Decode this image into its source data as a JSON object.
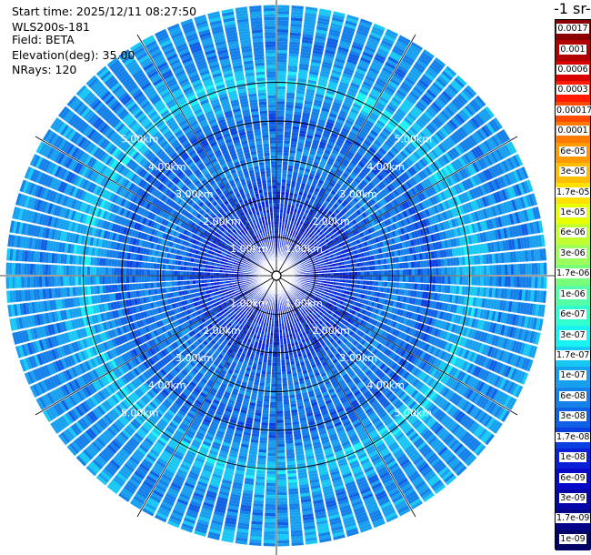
{
  "info": {
    "start_time": "Start time: 2025/12/11 08:27:50",
    "instrument": "WLS200s-181",
    "field": "Field: BETA",
    "elevation": "Elevation(deg): 35.00",
    "nrays": "NRays: 120"
  },
  "colorbar": {
    "title": "-1 sr-",
    "labels": [
      "0.0017",
      "0.001",
      "0.0006",
      "0.0003",
      "0.00017",
      "0.0001",
      "6e-05",
      "3e-05",
      "1.7e-05",
      "1e-05",
      "6e-06",
      "3e-06",
      "1.7e-06",
      "1e-06",
      "6e-07",
      "3e-07",
      "1.7e-07",
      "1e-07",
      "6e-08",
      "3e-08",
      "1.7e-08",
      "1e-08",
      "6e-09",
      "3e-09",
      "1.7e-09",
      "1e-09"
    ],
    "colors": [
      "#8b0000",
      "#b00000",
      "#d80000",
      "#ff1a00",
      "#ff4a00",
      "#ff7a00",
      "#ff9a00",
      "#ffbf00",
      "#ffe000",
      "#e8ff00",
      "#c2ff2e",
      "#9cff5c",
      "#7aff7a",
      "#55ffa8",
      "#30ffd0",
      "#18f2f2",
      "#18c8f4",
      "#18a0f0",
      "#1480ea",
      "#0f60e6",
      "#0a40e0",
      "#0a20d8",
      "#0808c8",
      "#0606a8",
      "#040488",
      "#020266"
    ]
  },
  "chart_data": {
    "type": "heatmap",
    "projection": "polar PPI",
    "field": "BETA",
    "scale": "log",
    "range_rings_km": [
      1,
      2,
      3,
      4,
      5
    ],
    "ring_labels": [
      "1.00km",
      "2.00km",
      "3.00km",
      "4.00km",
      "5.00km"
    ],
    "max_range_km": 7.0,
    "n_rays": 120,
    "elevation_deg": 35.0,
    "radial_profile": [
      {
        "range_km": 0.0,
        "level": "1e-08"
      },
      {
        "range_km": 1.0,
        "level": "1e-08"
      },
      {
        "range_km": 2.0,
        "level": "1.7e-08"
      },
      {
        "range_km": 3.0,
        "level": "6e-08"
      },
      {
        "range_km": 4.0,
        "level": "3e-08"
      },
      {
        "range_km": 5.0,
        "level": "1.7e-07"
      },
      {
        "range_km": 6.0,
        "level": "6e-08"
      },
      {
        "range_km": 7.0,
        "level": "1e-07"
      }
    ]
  }
}
